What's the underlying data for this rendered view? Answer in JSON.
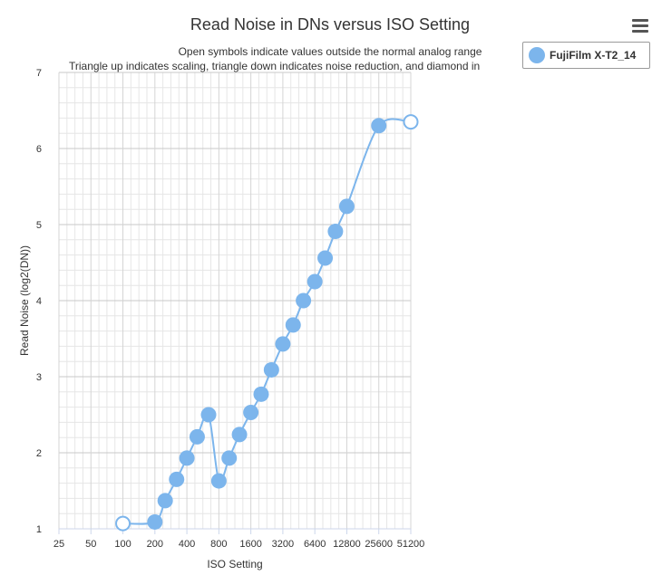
{
  "chart_data": {
    "type": "line",
    "title": "Read Noise in DNs versus ISO Setting",
    "subtitle_lines": [
      "Open symbols indicate values outside the normal analog range",
      "Triangle up indicates scaling, triangle down indicates noise reduction, and diamond in"
    ],
    "xlabel": "ISO Setting",
    "ylabel": "Read Noise (log2(DN))",
    "x_scale": "log2",
    "x_ticks": [
      "25",
      "50",
      "100",
      "200",
      "400",
      "800",
      "1600",
      "3200",
      "6400",
      "12800",
      "25600",
      "51200"
    ],
    "xlim": [
      25,
      51200
    ],
    "y_ticks": [
      1,
      2,
      3,
      4,
      5,
      6,
      7
    ],
    "ylim": [
      1,
      7
    ],
    "grid": true,
    "legend_position": "top-right",
    "series": [
      {
        "name": "FujiFilm X-T2_14",
        "color": "#7cb5ec",
        "points": [
          {
            "x": 100,
            "y": 1.07,
            "open": true
          },
          {
            "x": 200,
            "y": 1.09,
            "open": false
          },
          {
            "x": 250,
            "y": 1.37,
            "open": false
          },
          {
            "x": 320,
            "y": 1.65,
            "open": false
          },
          {
            "x": 400,
            "y": 1.93,
            "open": false
          },
          {
            "x": 500,
            "y": 2.21,
            "open": false
          },
          {
            "x": 640,
            "y": 2.5,
            "open": false
          },
          {
            "x": 800,
            "y": 1.63,
            "open": false
          },
          {
            "x": 1000,
            "y": 1.93,
            "open": false
          },
          {
            "x": 1250,
            "y": 2.24,
            "open": false
          },
          {
            "x": 1600,
            "y": 2.53,
            "open": false
          },
          {
            "x": 2000,
            "y": 2.77,
            "open": false
          },
          {
            "x": 2500,
            "y": 3.09,
            "open": false
          },
          {
            "x": 3200,
            "y": 3.43,
            "open": false
          },
          {
            "x": 4000,
            "y": 3.68,
            "open": false
          },
          {
            "x": 5000,
            "y": 4.0,
            "open": false
          },
          {
            "x": 6400,
            "y": 4.25,
            "open": false
          },
          {
            "x": 8000,
            "y": 4.56,
            "open": false
          },
          {
            "x": 10000,
            "y": 4.91,
            "open": false
          },
          {
            "x": 12800,
            "y": 5.24,
            "open": false
          },
          {
            "x": 25600,
            "y": 6.3,
            "open": false
          },
          {
            "x": 51200,
            "y": 6.35,
            "open": true
          }
        ]
      }
    ]
  },
  "legend": {
    "label": "FujiFilm X-T2_14"
  },
  "menu": {
    "icon": "hamburger-menu-icon"
  }
}
